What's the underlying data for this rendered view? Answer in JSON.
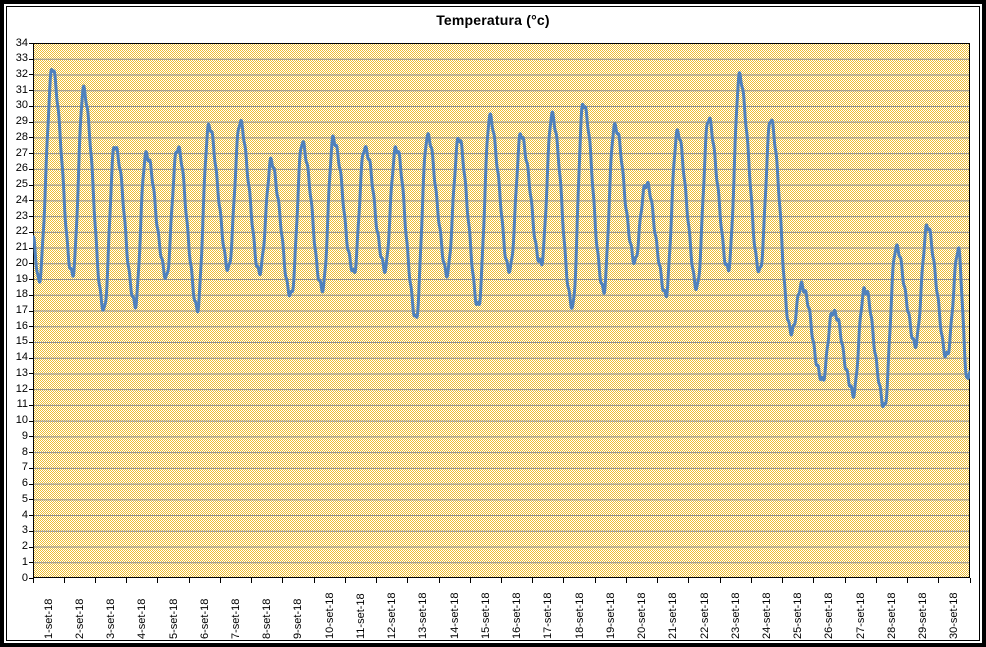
{
  "chart_data": {
    "type": "line",
    "title": "Temperatura (°c)",
    "xlabel": "",
    "ylabel": "",
    "ylim": [
      0,
      34
    ],
    "grid": "horizontal",
    "legend": "none",
    "y_ticks": [
      0,
      1,
      2,
      3,
      4,
      5,
      6,
      7,
      8,
      9,
      10,
      11,
      12,
      13,
      14,
      15,
      16,
      17,
      18,
      19,
      20,
      21,
      22,
      23,
      24,
      25,
      26,
      27,
      28,
      29,
      30,
      31,
      32,
      33,
      34
    ],
    "x_categories": [
      "1-set-18",
      "2-set-18",
      "3-set-18",
      "4-set-18",
      "5-set-18",
      "6-set-18",
      "7-set-18",
      "8-set-18",
      "9-set-18",
      "10-set-18",
      "11-set-18",
      "12-set-18",
      "13-set-18",
      "14-set-18",
      "15-set-18",
      "16-set-18",
      "17-set-18",
      "18-set-18",
      "19-set-18",
      "20-set-18",
      "21-set-18",
      "22-set-18",
      "23-set-18",
      "24-set-18",
      "25-set-18",
      "26-set-18",
      "27-set-18",
      "28-set-18",
      "29-set-18",
      "30-set-18"
    ],
    "series": [
      {
        "name": "Temperatura",
        "color": "#4F81BD",
        "line_width": 3,
        "sampling": "sub-daily (hourly) diurnal cycles",
        "start_value": 21.5,
        "daily_min": [
          18.9,
          19.2,
          17.0,
          17.4,
          19.2,
          17.2,
          19.7,
          19.4,
          17.9,
          18.3,
          19.4,
          19.7,
          16.6,
          19.4,
          17.3,
          19.5,
          19.9,
          17.2,
          18.3,
          20.2,
          18.1,
          18.5,
          19.6,
          19.4,
          15.6,
          12.6,
          11.8,
          11.0,
          14.9,
          14.1
        ],
        "daily_max": [
          32.3,
          31.0,
          27.5,
          27.0,
          27.4,
          28.7,
          28.9,
          26.4,
          27.6,
          27.9,
          27.4,
          27.4,
          28.1,
          27.9,
          29.2,
          28.1,
          29.4,
          30.2,
          28.8,
          25.1,
          28.3,
          29.1,
          31.8,
          29.1,
          18.6,
          17.0,
          18.4,
          21.0,
          22.3,
          20.8
        ],
        "min_time_fraction": 0.27,
        "max_time_fraction": 0.62,
        "end_drop_value": 12.4,
        "end_value": 13.2
      }
    ],
    "plot_style": {
      "background_pattern": "checkerboard-dither",
      "pattern_colors": [
        "#FFFFFF",
        "#EFBE33"
      ],
      "gridline_color": "#8F8F8F",
      "plot_border_color": "#000000",
      "outer_border_color": "#000000"
    }
  }
}
